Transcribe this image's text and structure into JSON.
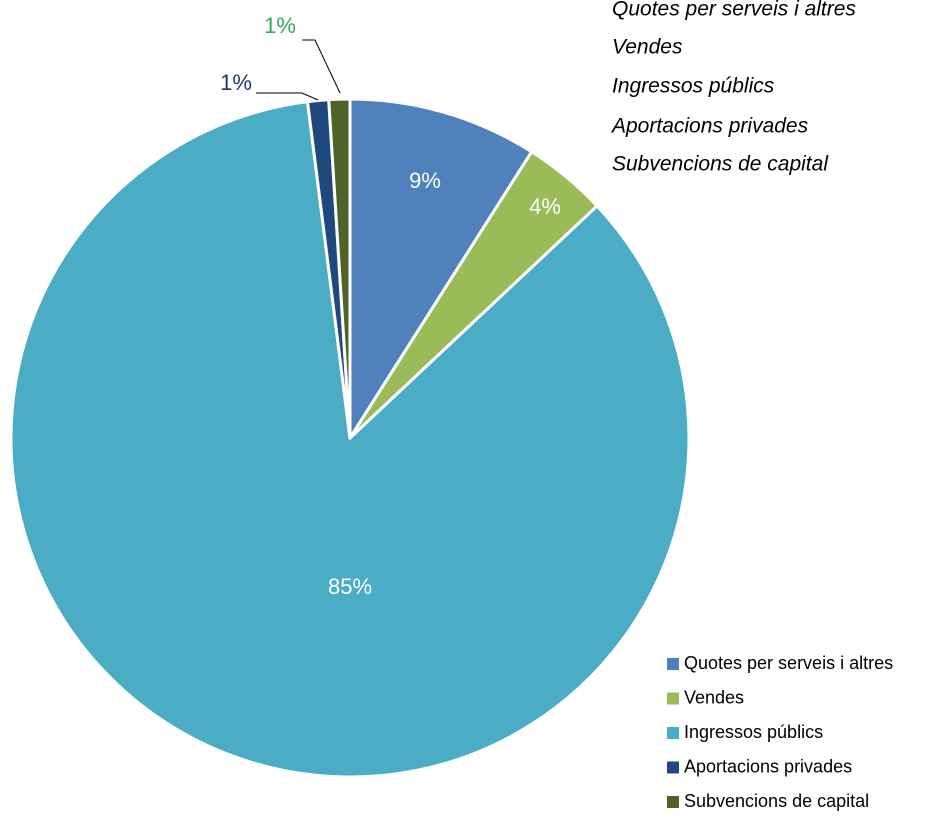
{
  "chart_data": {
    "type": "pie",
    "categories": [
      "Quotes per serveis i altres",
      "Vendes",
      "Ingressos públics",
      "Aportacions privades",
      "Subvencions de capital"
    ],
    "values": [
      9,
      4,
      85,
      1,
      1
    ],
    "value_labels": [
      "9%",
      "4%",
      "85%",
      "1%",
      "1%"
    ],
    "colors": [
      "#4f81bd",
      "#9bbb59",
      "#4bacc6",
      "#1f497d",
      "#4f6228"
    ],
    "legend": "bottom-right"
  }
}
